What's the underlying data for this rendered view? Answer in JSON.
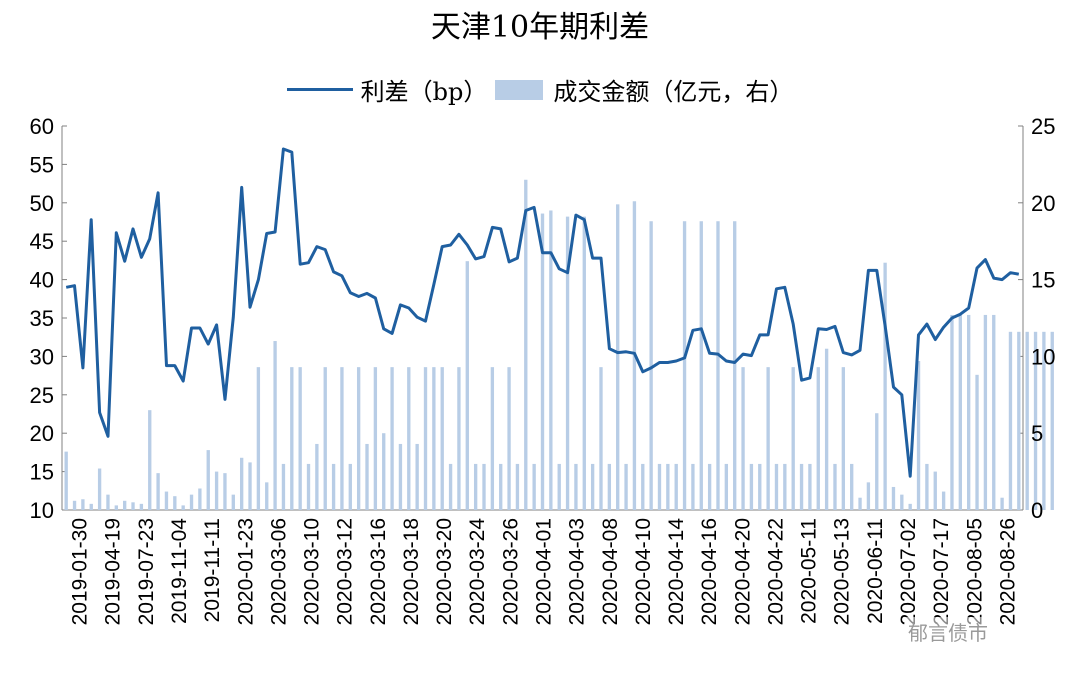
{
  "chart_data": {
    "type": "bar+line",
    "title": "天津10年期利差",
    "legend": {
      "placement": "top-center",
      "line_label": "利差（bp）",
      "bar_label": "成交金额（亿元，右）"
    },
    "colors": {
      "line": "#1f5fa0",
      "bar": "#b8cde6"
    },
    "left_axis": {
      "min": 10,
      "max": 60,
      "ticks": [
        60,
        55,
        50,
        45,
        40,
        35,
        30,
        25,
        20,
        15,
        10
      ]
    },
    "right_axis": {
      "min": 0,
      "max": 25,
      "ticks": [
        25,
        20,
        15,
        10,
        5,
        0
      ]
    },
    "x_tick_labels": [
      "2019-01-30",
      "2019-04-19",
      "2019-07-23",
      "2019-11-04",
      "2019-11-11",
      "2020-01-23",
      "2020-03-06",
      "2020-03-10",
      "2020-03-12",
      "2020-03-16",
      "2020-03-18",
      "2020-03-20",
      "2020-03-24",
      "2020-03-26",
      "2020-04-01",
      "2020-04-03",
      "2020-04-08",
      "2020-04-10",
      "2020-04-14",
      "2020-04-16",
      "2020-04-20",
      "2020-04-22",
      "2020-05-11",
      "2020-05-13",
      "2020-06-11",
      "2020-07-02",
      "2020-07-17",
      "2020-08-05",
      "2020-08-26"
    ],
    "grid": false,
    "series": [
      {
        "name": "利差（bp）",
        "axis": "left",
        "type": "line",
        "values": [
          39,
          39.2,
          28.5,
          47.8,
          22.7,
          19.6,
          46.1,
          42.4,
          46.6,
          42.9,
          45.3,
          51.3,
          28.8,
          28.8,
          26.8,
          33.7,
          33.7,
          31.6,
          34.1,
          24.4,
          35.1,
          52,
          36.4,
          40,
          46,
          46.2,
          57,
          56.6,
          42,
          42.2,
          44.3,
          43.9,
          41,
          40.5,
          38.3,
          37.8,
          38.2,
          37.6,
          33.6,
          33,
          36.7,
          36.3,
          35.1,
          34.6,
          39.4,
          44.3,
          44.5,
          45.9,
          44.5,
          42.7,
          43,
          46.8,
          46.6,
          42.3,
          42.8,
          49,
          49.4,
          43.5,
          43.5,
          41.4,
          40.9,
          48.4,
          47.8,
          42.8,
          42.8,
          31,
          30.5,
          30.6,
          30.4,
          28,
          28.5,
          29.2,
          29.2,
          29.4,
          29.8,
          33.4,
          33.6,
          30.4,
          30.3,
          29.4,
          29.2,
          30.3,
          30.1,
          32.8,
          32.8,
          38.8,
          39,
          34.2,
          26.9,
          27.2,
          33.6,
          33.5,
          33.9,
          30.5,
          30.2,
          30.8,
          41.2,
          41.2,
          34,
          26,
          25,
          14.4,
          32.8,
          34.2,
          32.2,
          33.8,
          35,
          35.5,
          36.3,
          41.5,
          42.6,
          40.2,
          40,
          40.9,
          40.7
        ]
      },
      {
        "name": "成交金额（亿元，右）",
        "axis": "right",
        "type": "bar",
        "values": [
          3.8,
          0.6,
          0.7,
          0.4,
          2.7,
          1,
          0.3,
          0.6,
          0.5,
          0.4,
          6.5,
          2.4,
          1.2,
          0.9,
          0.3,
          1,
          1.4,
          3.9,
          2.5,
          2.4,
          1,
          3.4,
          3.1,
          9.3,
          1.8,
          11,
          3,
          9.3,
          9.3,
          3,
          4.3,
          9.3,
          3,
          9.3,
          3,
          9.3,
          4.3,
          9.3,
          5,
          9.3,
          4.3,
          9.3,
          4.3,
          9.3,
          9.3,
          9.3,
          3,
          9.3,
          16.2,
          3,
          3,
          9.3,
          3,
          9.3,
          3,
          21.5,
          3,
          19.3,
          19.5,
          3,
          19.1,
          3,
          19.1,
          3,
          9.3,
          3,
          19.9,
          3,
          20.1,
          3,
          18.8,
          3,
          3,
          3,
          18.8,
          3,
          18.8,
          3,
          18.8,
          3,
          18.8,
          9.3,
          3,
          3,
          9.3,
          3,
          3,
          9.3,
          3,
          3,
          9.3,
          10.5,
          3,
          9.3,
          3,
          0.8,
          1.8,
          6.3,
          16.1,
          1.5,
          1,
          0.4,
          9.7,
          3,
          2.5,
          1.2,
          12.7,
          12.7,
          12.7,
          8.8,
          12.7,
          12.7,
          0.8,
          11.6,
          11.6,
          11.6,
          11.6,
          11.6,
          11.6
        ]
      }
    ]
  },
  "watermark": {
    "text": "郁言债市"
  }
}
